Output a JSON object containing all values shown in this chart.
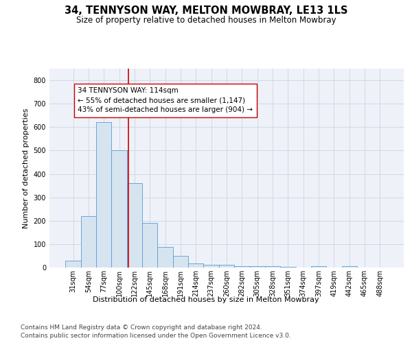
{
  "title": "34, TENNYSON WAY, MELTON MOWBRAY, LE13 1LS",
  "subtitle": "Size of property relative to detached houses in Melton Mowbray",
  "xlabel": "Distribution of detached houses by size in Melton Mowbray",
  "ylabel": "Number of detached properties",
  "categories": [
    "31sqm",
    "54sqm",
    "77sqm",
    "100sqm",
    "122sqm",
    "145sqm",
    "168sqm",
    "191sqm",
    "214sqm",
    "237sqm",
    "260sqm",
    "282sqm",
    "305sqm",
    "328sqm",
    "351sqm",
    "374sqm",
    "397sqm",
    "419sqm",
    "442sqm",
    "465sqm",
    "488sqm"
  ],
  "values": [
    30,
    220,
    620,
    500,
    360,
    190,
    88,
    50,
    18,
    13,
    13,
    7,
    5,
    5,
    3,
    0,
    5,
    0,
    5,
    0,
    0
  ],
  "bar_color": "#d6e4f0",
  "bar_edge_color": "#5b9bd5",
  "vline_color": "#cc0000",
  "annotation_text": "34 TENNYSON WAY: 114sqm\n← 55% of detached houses are smaller (1,147)\n43% of semi-detached houses are larger (904) →",
  "annotation_box_color": "#ffffff",
  "annotation_box_edge": "#cc0000",
  "ylim": [
    0,
    850
  ],
  "yticks": [
    0,
    100,
    200,
    300,
    400,
    500,
    600,
    700,
    800
  ],
  "grid_color": "#d0d8e8",
  "background_color": "#eef2f8",
  "footer_line1": "Contains HM Land Registry data © Crown copyright and database right 2024.",
  "footer_line2": "Contains public sector information licensed under the Open Government Licence v3.0.",
  "title_fontsize": 10.5,
  "subtitle_fontsize": 8.5,
  "axis_label_fontsize": 8,
  "tick_fontsize": 7,
  "annotation_fontsize": 7.5,
  "footer_fontsize": 6.5,
  "vline_x": 3.61
}
